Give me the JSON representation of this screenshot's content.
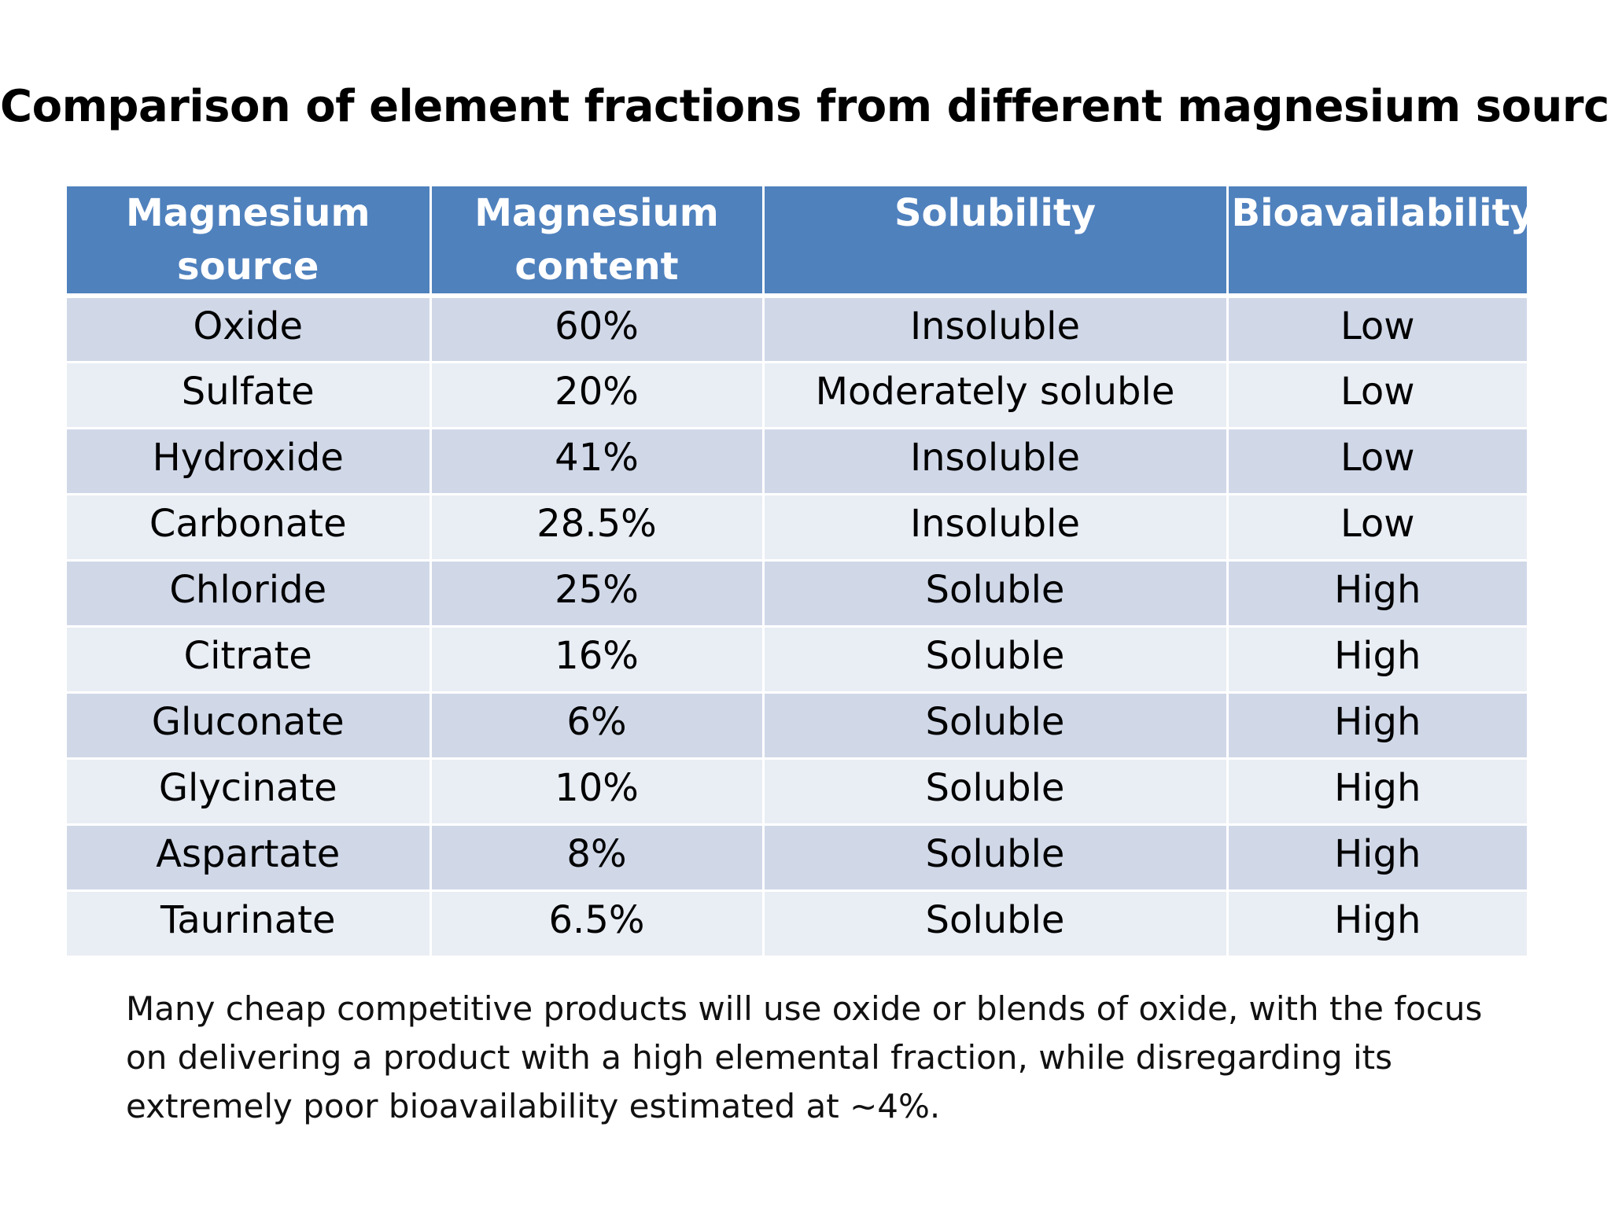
{
  "title": "Comparison of element fractions from different magnesium sources",
  "table": {
    "headers": [
      "Magnesium source",
      "Magnesium content",
      "Solubility",
      "Bioavailability"
    ],
    "rows": [
      [
        "Oxide",
        "60%",
        "Insoluble",
        "Low"
      ],
      [
        "Sulfate",
        "20%",
        "Moderately soluble",
        "Low"
      ],
      [
        "Hydroxide",
        "41%",
        "Insoluble",
        "Low"
      ],
      [
        "Carbonate",
        "28.5%",
        "Insoluble",
        "Low"
      ],
      [
        "Chloride",
        "25%",
        "Soluble",
        "High"
      ],
      [
        "Citrate",
        "16%",
        "Soluble",
        "High"
      ],
      [
        "Gluconate",
        "6%",
        "Soluble",
        "High"
      ],
      [
        "Glycinate",
        "10%",
        "Soluble",
        "High"
      ],
      [
        "Aspartate",
        "8%",
        "Soluble",
        "High"
      ],
      [
        "Taurinate",
        "6.5%",
        "Soluble",
        "High"
      ]
    ]
  },
  "note": "Many cheap competitive products will use oxide or blends of oxide, with the focus on delivering a product with a high elemental fraction, while disregarding  its extremely poor bioavailability estimated at ~4%.",
  "colors": {
    "header_bg": "#4f81bd",
    "row_odd_bg": "#d0d8e8",
    "row_even_bg": "#e9edf4"
  }
}
